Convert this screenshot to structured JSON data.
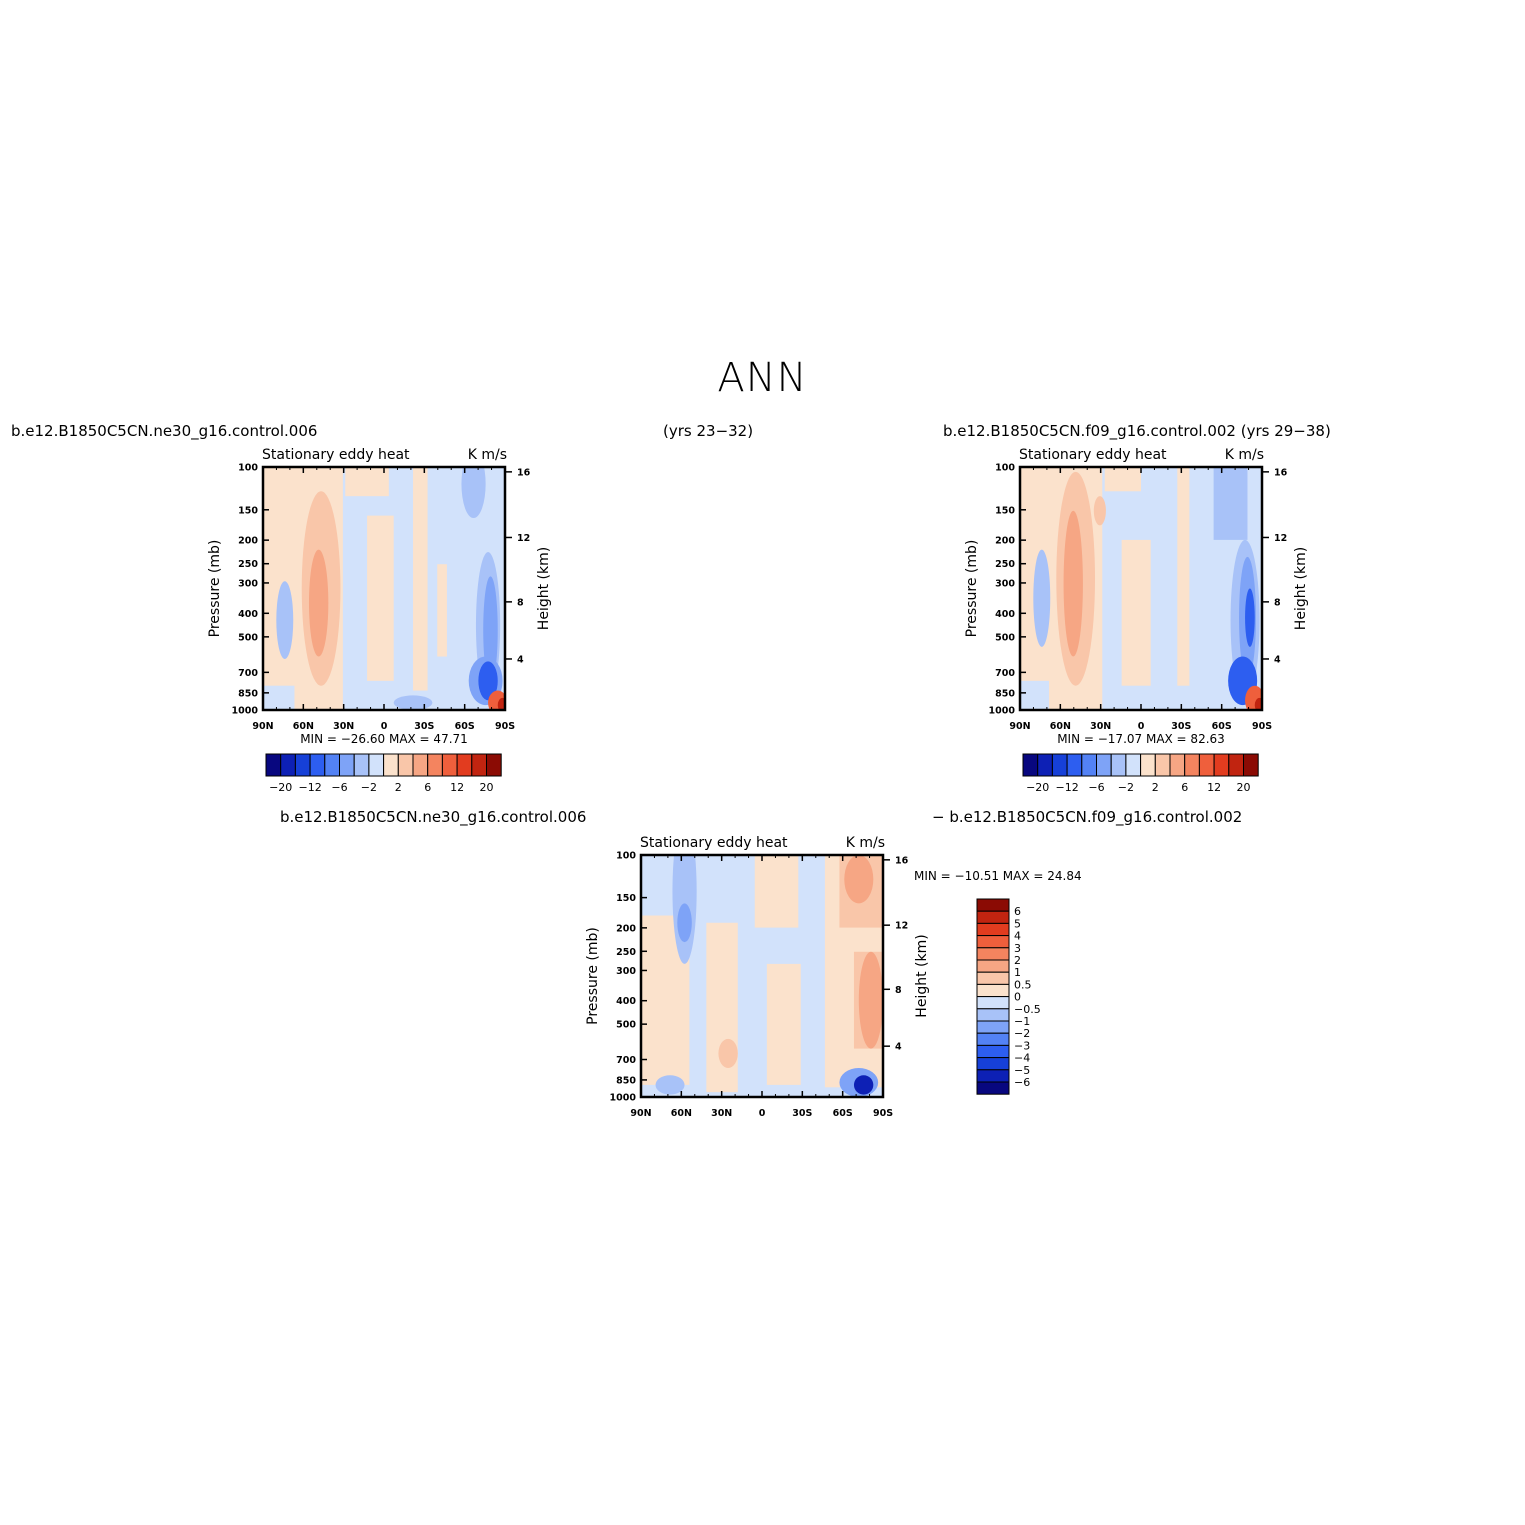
{
  "page": {
    "title": "ANN",
    "left_case": "b.e12.B1850C5CN.ne30_g16.control.006",
    "center_years": "(yrs 23−32)",
    "right_case_years": "b.e12.B1850C5CN.f09_g16.control.002 (yrs 29−38)",
    "diff_left": "b.e12.B1850C5CN.ne30_g16.control.006",
    "diff_right": "− b.e12.B1850C5CN.f09_g16.control.002"
  },
  "colors": {
    "palette20": [
      "#08077f",
      "#0d20b5",
      "#1640d8",
      "#2d5ef0",
      "#5382f5",
      "#7ea3f7",
      "#a8c2f8",
      "#d2e2fb",
      "#fbe2cc",
      "#f9c6a9",
      "#f6a684",
      "#f4845f",
      "#ef5f3c",
      "#e23c1f",
      "#c12410",
      "#8b0b04"
    ],
    "palette_diff": [
      "#08077f",
      "#0d20b5",
      "#1640d8",
      "#2d5ef0",
      "#5382f5",
      "#7ea3f7",
      "#a8c2f8",
      "#d2e2fb",
      "#fbe2cc",
      "#f9c6a9",
      "#f6a684",
      "#f4845f",
      "#ef5f3c",
      "#e23c1f",
      "#c12410",
      "#8b0b04"
    ]
  },
  "chart_data": [
    {
      "type": "heatmap",
      "panel": "top-left",
      "subtitle_left": "Stationary eddy heat",
      "subtitle_right": "K m/s",
      "ylabel": "Pressure (mb)",
      "ylabel_right": "Height (km)",
      "xticks": [
        "90N",
        "60N",
        "30N",
        "0",
        "30S",
        "60S",
        "90S"
      ],
      "yticks": [
        "100",
        "150",
        "200",
        "250",
        "300",
        "400",
        "500",
        "700",
        "850",
        "1000"
      ],
      "yticks_right": [
        "16",
        "12",
        "8",
        "4"
      ],
      "minmax": "MIN = −26.60   MAX =  47.71",
      "colorbar_labels": [
        "−20",
        "−12",
        "−6",
        "−2",
        "2",
        "6",
        "12",
        "20"
      ]
    },
    {
      "type": "heatmap",
      "panel": "top-right",
      "subtitle_left": "Stationary eddy heat",
      "subtitle_right": "K m/s",
      "ylabel": "Pressure (mb)",
      "ylabel_right": "Height (km)",
      "xticks": [
        "90N",
        "60N",
        "30N",
        "0",
        "30S",
        "60S",
        "90S"
      ],
      "yticks": [
        "100",
        "150",
        "200",
        "250",
        "300",
        "400",
        "500",
        "700",
        "850",
        "1000"
      ],
      "yticks_right": [
        "16",
        "12",
        "8",
        "4"
      ],
      "minmax": "MIN = −17.07   MAX =  82.63",
      "colorbar_labels": [
        "−20",
        "−12",
        "−6",
        "−2",
        "2",
        "6",
        "12",
        "20"
      ]
    },
    {
      "type": "heatmap",
      "panel": "bottom-difference",
      "subtitle_left": "Stationary eddy heat",
      "subtitle_right": "K m/s",
      "ylabel": "Pressure (mb)",
      "ylabel_right": "Height (km)",
      "xticks": [
        "90N",
        "60N",
        "30N",
        "0",
        "30S",
        "60S",
        "90S"
      ],
      "yticks": [
        "100",
        "150",
        "200",
        "250",
        "300",
        "400",
        "500",
        "700",
        "850",
        "1000"
      ],
      "yticks_right": [
        "16",
        "12",
        "8",
        "4"
      ],
      "minmax": "MIN = −10.51   MAX =  24.84",
      "colorbar_labels": [
        "6",
        "5",
        "4",
        "3",
        "2",
        "1",
        "0.5",
        "0",
        "−0.5",
        "−1",
        "−2",
        "−3",
        "−4",
        "−5",
        "−6"
      ]
    }
  ]
}
